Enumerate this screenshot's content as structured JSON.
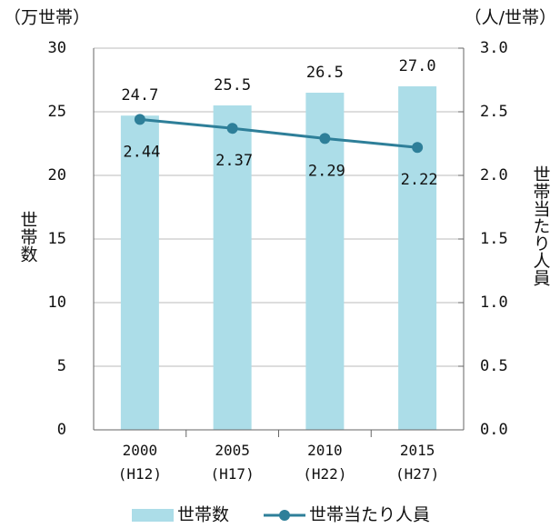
{
  "chart_data": {
    "type": "bar",
    "y_axis_unit": "（万世帯）",
    "y_axis_label": "世帯数",
    "y2_axis_unit": "（人/世帯）",
    "y2_axis_label": "世帯当たり人員",
    "categories": [
      "2000\n(H12)",
      "2005\n(H17)",
      "2010\n(H22)",
      "2015\n(H27)"
    ],
    "series": [
      {
        "name": "世帯数",
        "type": "bar",
        "color": "#acdde8",
        "label_color": "#2e6f8a",
        "values": [
          24.7,
          25.5,
          26.5,
          27.0
        ],
        "value_labels": [
          "24.7",
          "25.5",
          "26.5",
          "27.0"
        ]
      },
      {
        "name": "世帯当たり人員",
        "type": "line",
        "axis": "y2",
        "color": "#2e7f99",
        "label_color": "#2e6f8a",
        "values": [
          2.44,
          2.37,
          2.29,
          2.22
        ]
      }
    ],
    "ylim": [
      0,
      30
    ],
    "yticks": [
      0,
      5,
      10,
      15,
      20,
      25,
      30
    ],
    "y2lim": [
      0,
      3
    ],
    "y2ticks": [
      {
        "value": 0,
        "label": "0.0"
      },
      {
        "value": 0.5,
        "label": "0.5"
      },
      {
        "value": 1,
        "label": "1.0"
      },
      {
        "value": 1.5,
        "label": "1.5"
      },
      {
        "value": 2,
        "label": "2.0"
      },
      {
        "value": 2.5,
        "label": "2.5"
      },
      {
        "value": 3,
        "label": "3.0"
      }
    ],
    "grid": true,
    "legend": "bottom"
  }
}
